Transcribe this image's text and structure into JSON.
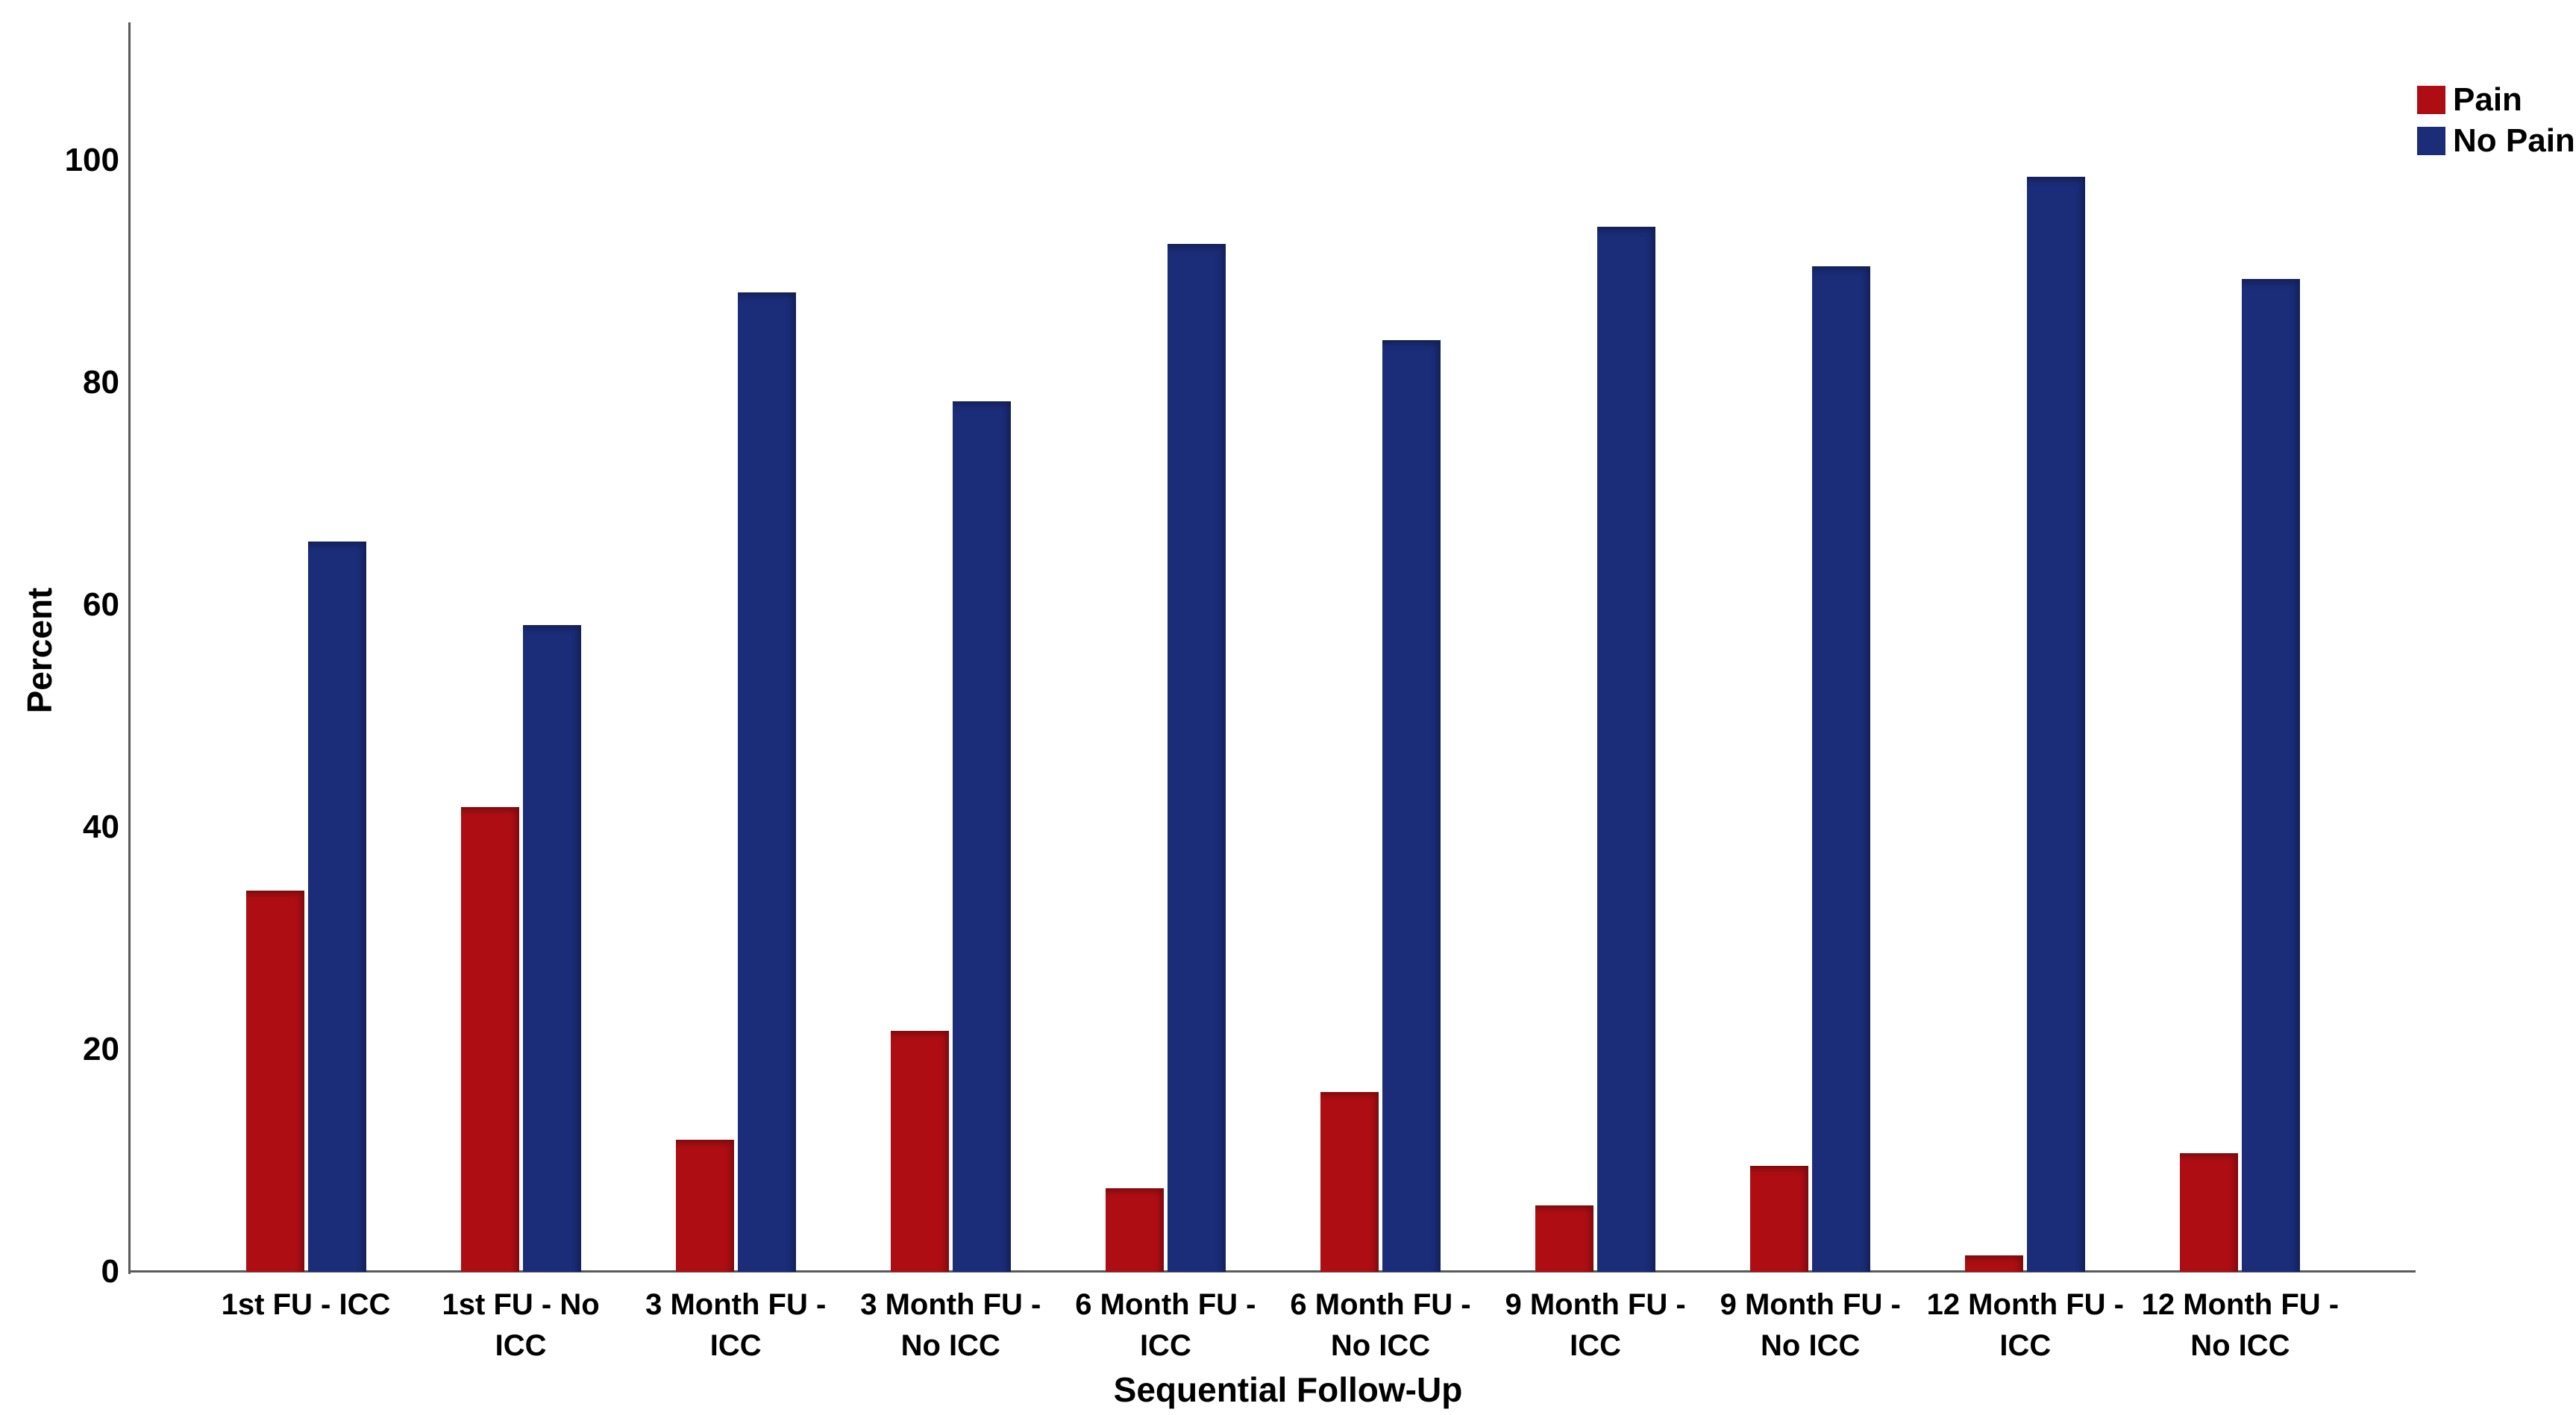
{
  "chart_data": {
    "type": "bar",
    "title": "",
    "xlabel": "Sequential Follow-Up",
    "ylabel": "Percent",
    "categories": [
      "1st FU - ICC",
      "1st FU - No\nICC",
      "3 Month FU -\nICC",
      "3 Month FU -\nNo ICC",
      "6 Month FU -\nICC",
      "6 Month FU -\nNo ICC",
      "9 Month FU -\nICC",
      "9 Month FU -\nNo ICC",
      "12 Month FU -\nICC",
      "12 Month FU -\nNo ICC"
    ],
    "series": [
      {
        "name": "Pain",
        "color": "#AE0E13",
        "values": [
          34.3,
          41.8,
          11.9,
          21.7,
          7.5,
          16.2,
          6.0,
          9.5,
          1.5,
          10.7
        ]
      },
      {
        "name": "No Pain",
        "color": "#1B2C78",
        "values": [
          65.7,
          58.2,
          88.1,
          78.3,
          92.5,
          83.8,
          94.0,
          90.5,
          98.5,
          89.3
        ]
      }
    ],
    "y_ticks": [
      0,
      20,
      40,
      60,
      80,
      100
    ],
    "ylim": [
      0,
      112.5
    ],
    "grid": false,
    "legend_position": "top-right",
    "axis_color": "#5a5a5a",
    "background_color": "#ffffff"
  }
}
